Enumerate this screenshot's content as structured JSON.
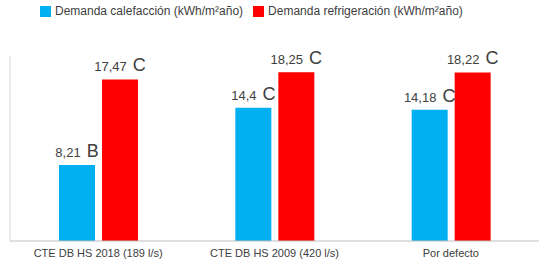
{
  "chart_data": {
    "type": "bar",
    "categories": [
      "CTE DB HS 2018 (189 l/s)",
      "CTE DB HS 2009 (420 l/s)",
      "Por defecto"
    ],
    "series": [
      {
        "name": "Demanda calefacción (kWh/m²año)",
        "color": "#00b0f0",
        "values": [
          8.21,
          14.4,
          14.18
        ],
        "value_labels": [
          "8,21 B",
          "14,4 C",
          "14,18 C"
        ]
      },
      {
        "name": "Demanda refrigeración (kWh/m²año)",
        "color": "#ff0000",
        "values": [
          17.47,
          18.25,
          18.22
        ],
        "value_labels": [
          "17,47 C",
          "18,25 C",
          "18,22 C"
        ]
      }
    ],
    "ylim": [
      0,
      20
    ],
    "grid": false,
    "legend": "top-left",
    "data_labels": true,
    "tick_labels": "x"
  }
}
